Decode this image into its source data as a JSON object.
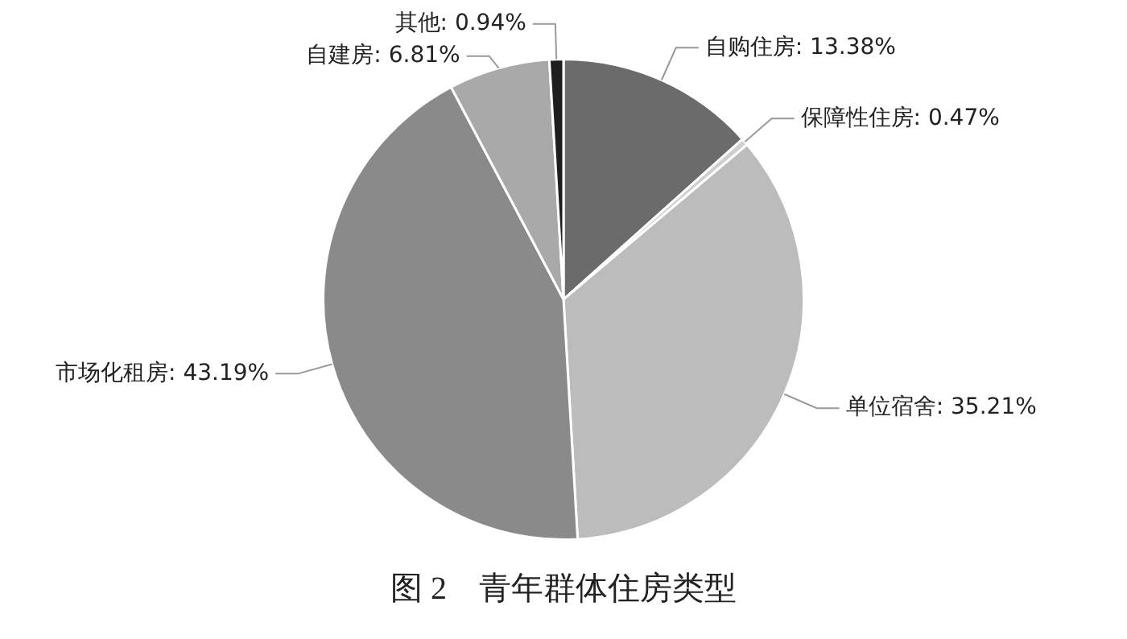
{
  "chart_data": {
    "type": "pie",
    "title": "图 2　青年群体住房类型",
    "categories": [
      "自购住房",
      "保障性住房",
      "单位宿舍",
      "市场化租房",
      "自建房",
      "其他"
    ],
    "values": [
      13.38,
      0.47,
      35.21,
      43.19,
      6.81,
      0.94
    ],
    "value_labels": [
      "13.38%",
      "0.47%",
      "35.21%",
      "43.19%",
      "6.81%",
      "0.94%"
    ],
    "colors": [
      "#6b6b6b",
      "#cfcfcf",
      "#bcbcbc",
      "#8a8a8a",
      "#a9a9a9",
      "#1e1e1e"
    ],
    "legend": false
  }
}
